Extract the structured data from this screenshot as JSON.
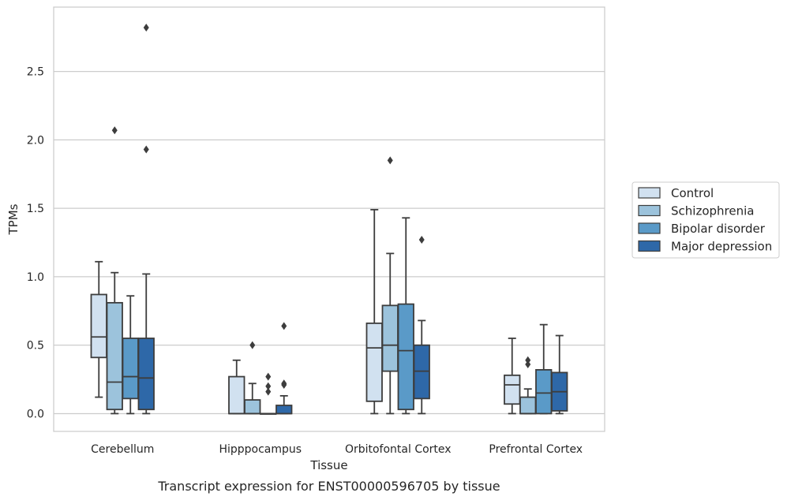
{
  "chart_data": {
    "type": "box",
    "xlabel": "Tissue",
    "ylabel": "TPMs",
    "caption": "Transcript expression for ENST00000596705 by tissue",
    "ylim": [
      -0.13,
      2.97
    ],
    "yticks": [
      "0.0",
      "0.5",
      "1.0",
      "1.5",
      "2.0",
      "2.5"
    ],
    "grid": "horizontal",
    "legend_position": "right",
    "categories": [
      "Cerebellum",
      "Hipppocampus",
      "Orbitofontal Cortex",
      "Prefrontal Cortex"
    ],
    "series": [
      {
        "name": "Control",
        "color": "#d1e1f0",
        "boxes": [
          {
            "whislo": 0.12,
            "q1": 0.41,
            "med": 0.56,
            "q3": 0.87,
            "whishi": 1.11,
            "fliers": []
          },
          {
            "whislo": 0.0,
            "q1": 0.0,
            "med": 0.0,
            "q3": 0.27,
            "whishi": 0.39,
            "fliers": []
          },
          {
            "whislo": 0.0,
            "q1": 0.09,
            "med": 0.48,
            "q3": 0.66,
            "whishi": 1.49,
            "fliers": []
          },
          {
            "whislo": 0.0,
            "q1": 0.07,
            "med": 0.21,
            "q3": 0.28,
            "whishi": 0.55,
            "fliers": []
          }
        ]
      },
      {
        "name": "Schizophrenia",
        "color": "#9cc3dc",
        "boxes": [
          {
            "whislo": 0.0,
            "q1": 0.03,
            "med": 0.23,
            "q3": 0.81,
            "whishi": 1.03,
            "fliers": [
              2.07
            ]
          },
          {
            "whislo": 0.0,
            "q1": 0.0,
            "med": 0.0,
            "q3": 0.1,
            "whishi": 0.22,
            "fliers": [
              0.5
            ]
          },
          {
            "whislo": 0.0,
            "q1": 0.31,
            "med": 0.5,
            "q3": 0.79,
            "whishi": 1.17,
            "fliers": [
              1.85
            ]
          },
          {
            "whislo": 0.0,
            "q1": 0.0,
            "med": 0.0,
            "q3": 0.12,
            "whishi": 0.18,
            "fliers": [
              0.36,
              0.39
            ]
          }
        ]
      },
      {
        "name": "Bipolar disorder",
        "color": "#5a9ac8",
        "boxes": [
          {
            "whislo": 0.0,
            "q1": 0.11,
            "med": 0.27,
            "q3": 0.55,
            "whishi": 0.86,
            "fliers": []
          },
          {
            "whislo": 0.0,
            "q1": 0.0,
            "med": 0.0,
            "q3": 0.0,
            "whishi": 0.0,
            "fliers": [
              0.16,
              0.2,
              0.27
            ]
          },
          {
            "whislo": 0.0,
            "q1": 0.03,
            "med": 0.46,
            "q3": 0.8,
            "whishi": 1.43,
            "fliers": []
          },
          {
            "whislo": 0.0,
            "q1": 0.0,
            "med": 0.15,
            "q3": 0.32,
            "whishi": 0.65,
            "fliers": []
          }
        ]
      },
      {
        "name": "Major depression",
        "color": "#2e68a8",
        "boxes": [
          {
            "whislo": 0.0,
            "q1": 0.03,
            "med": 0.26,
            "q3": 0.55,
            "whishi": 1.02,
            "fliers": [
              1.93,
              2.82
            ]
          },
          {
            "whislo": 0.0,
            "q1": 0.0,
            "med": 0.0,
            "q3": 0.06,
            "whishi": 0.13,
            "fliers": [
              0.21,
              0.22,
              0.64
            ]
          },
          {
            "whislo": 0.0,
            "q1": 0.11,
            "med": 0.31,
            "q3": 0.5,
            "whishi": 0.68,
            "fliers": [
              1.27
            ]
          },
          {
            "whislo": 0.0,
            "q1": 0.02,
            "med": 0.16,
            "q3": 0.3,
            "whishi": 0.57,
            "fliers": []
          }
        ]
      }
    ]
  }
}
